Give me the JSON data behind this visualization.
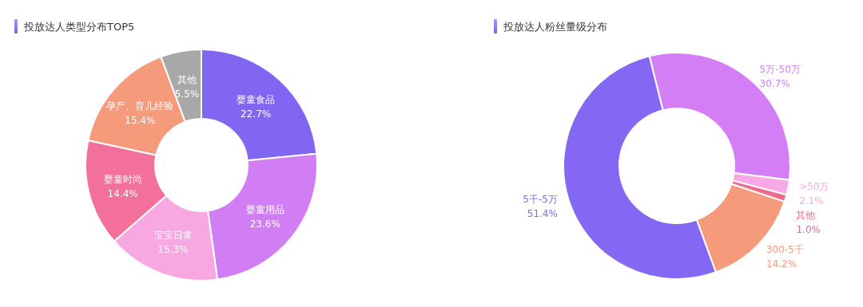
{
  "chart_data": [
    {
      "type": "donut",
      "title": "投放达人类型分布TOP5",
      "categories": [
        "婴童食品",
        "婴童用品",
        "宝宝日常",
        "婴童时尚",
        "孕产、育儿经验",
        "其他"
      ],
      "values": [
        22.7,
        23.6,
        15.3,
        14.4,
        15.4,
        5.5
      ],
      "value_labels": [
        "22.7%",
        "23.6%",
        "15.3%",
        "14.4%",
        "15.4%",
        "5.5%"
      ],
      "colors": [
        "#8066f0",
        "#d17ef5",
        "#f7a8e0",
        "#f27099",
        "#f59a7a",
        "#a8a8a8"
      ]
    },
    {
      "type": "donut",
      "title": "投放达人粉丝量级分布",
      "categories": [
        "5万-50万",
        ">50万",
        "其他",
        "300-5千",
        "5千-5万"
      ],
      "values": [
        30.7,
        2.1,
        1.0,
        14.2,
        51.4
      ],
      "value_labels": [
        "30.7%",
        "2.1%",
        "1.0%",
        "14.2%",
        "51.4%"
      ],
      "colors": [
        "#d37ef4",
        "#f9a8e6",
        "#ec6b8f",
        "#f59a7a",
        "#8467f2"
      ]
    }
  ]
}
